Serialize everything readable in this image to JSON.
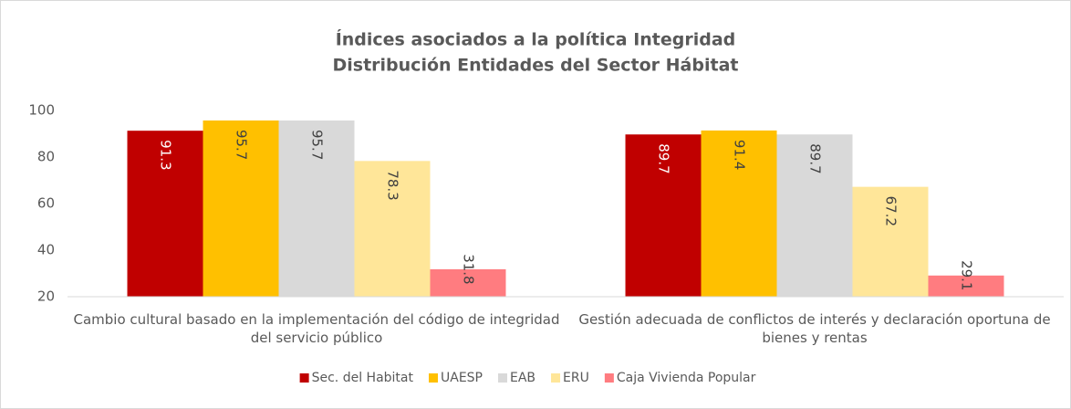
{
  "chart_data": {
    "type": "bar",
    "title": "Índices asociados a la política Integridad",
    "subtitle": "Distribución Entidades del Sector Hábitat",
    "categories": [
      "Cambio cultural basado en la implementación del código de integridad del servicio público",
      "Gestión adecuada de conflictos de interés y declaración oportuna de bienes y rentas"
    ],
    "series": [
      {
        "name": "Sec. del Habitat",
        "color": "#c00000",
        "label_color": "#ffffff",
        "values": [
          91.3,
          89.7
        ]
      },
      {
        "name": "UAESP",
        "color": "#ffc000",
        "label_color": "#404040",
        "values": [
          95.7,
          91.4
        ]
      },
      {
        "name": "EAB",
        "color": "#d9d9d9",
        "label_color": "#404040",
        "values": [
          95.7,
          89.7
        ]
      },
      {
        "name": "ERU",
        "color": "#ffe699",
        "label_color": "#404040",
        "values": [
          78.3,
          67.2
        ]
      },
      {
        "name": "Caja Vivienda Popular",
        "color": "#ff7c80",
        "label_color": "#404040",
        "values": [
          31.8,
          29.1
        ]
      }
    ],
    "ylim": [
      20,
      100
    ],
    "yticks": [
      20,
      40,
      60,
      80,
      100
    ],
    "grid": false,
    "legend": "bottom"
  }
}
